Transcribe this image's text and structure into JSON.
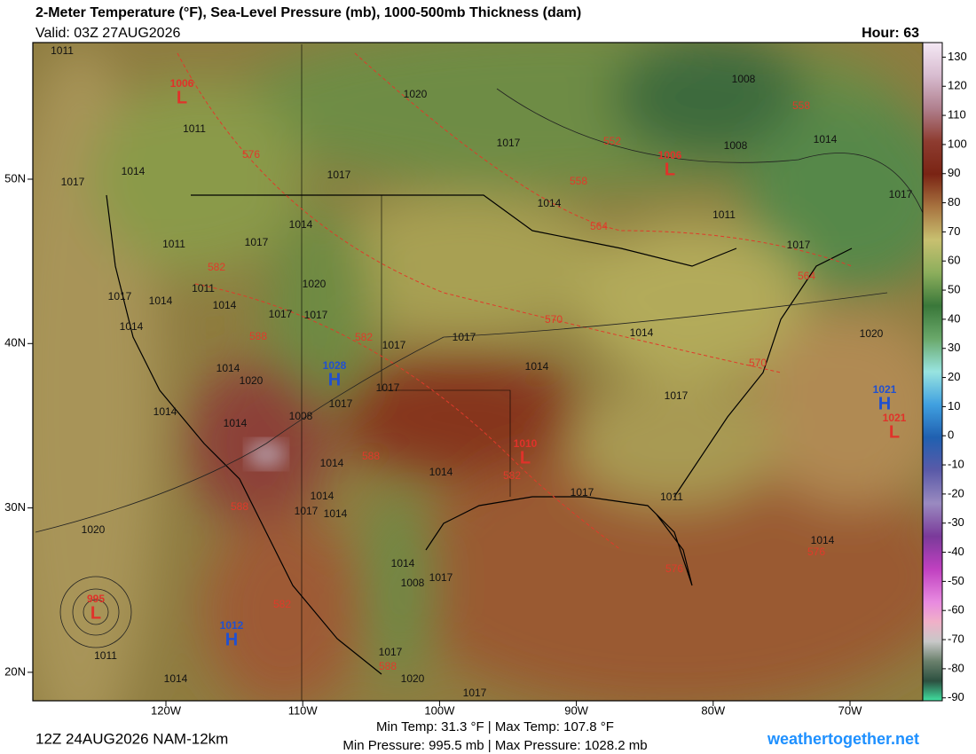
{
  "header": {
    "title": "2-Meter Temperature (°F), Sea-Level Pressure (mb), 1000-500mb Thickness (dam)",
    "valid": "Valid: 03Z 27AUG2026",
    "hour": "Hour: 63"
  },
  "map": {
    "lat_ticks": [
      {
        "value": 50,
        "label": "50N"
      },
      {
        "value": 40,
        "label": "40N"
      },
      {
        "value": 30,
        "label": "30N"
      },
      {
        "value": 20,
        "label": "20N"
      }
    ],
    "lon_ticks": [
      {
        "value": -120,
        "label": "120W"
      },
      {
        "value": -110,
        "label": "110W"
      },
      {
        "value": -100,
        "label": "100W"
      },
      {
        "value": -90,
        "label": "90W"
      },
      {
        "value": -80,
        "label": "80W"
      },
      {
        "value": -70,
        "label": "70W"
      }
    ],
    "pressure_centers": [
      {
        "kind": "L",
        "value": 1006
      },
      {
        "kind": "L",
        "value": 1006
      },
      {
        "kind": "H",
        "value": 1028
      },
      {
        "kind": "L",
        "value": 1010
      },
      {
        "kind": "H",
        "value": 1021
      },
      {
        "kind": "L",
        "value": 1021
      },
      {
        "kind": "H",
        "value": 1012
      },
      {
        "kind": "L",
        "value": 995
      }
    ],
    "isobar_labels": [
      1011,
      1020,
      1008,
      1011,
      1017,
      1017,
      1008,
      1014,
      1014,
      1017,
      1017,
      1014,
      1011,
      1014,
      1011,
      1017,
      1017,
      1020,
      1011,
      1017,
      1014,
      1014,
      1017,
      1017,
      1014,
      1017,
      1014,
      1020,
      1017,
      1014,
      1014,
      1020,
      1017,
      1017,
      1017,
      1014,
      1008,
      1014,
      1014,
      1014,
      1014,
      1017,
      1011,
      1017,
      1014,
      1020,
      1014,
      1014,
      1017,
      1008,
      1011,
      1014,
      1017,
      1020,
      1017
    ],
    "thickness_labels": [
      576,
      558,
      552,
      558,
      564,
      582,
      564,
      570,
      588,
      582,
      570,
      588,
      582,
      588,
      576,
      576,
      582,
      588
    ]
  },
  "colorbar": {
    "lim": [
      -91,
      135
    ],
    "ticks": [
      130,
      120,
      110,
      100,
      90,
      80,
      70,
      60,
      50,
      40,
      30,
      20,
      10,
      0,
      -10,
      -20,
      -30,
      -40,
      -50,
      -60,
      -70,
      -80,
      -90
    ]
  },
  "footer": {
    "run": "12Z 24AUG2026 NAM-12km",
    "temp": "Min Temp:  31.3 °F | Max Temp: 107.8 °F",
    "pressure": "Min Pressure: 995.5 mb | Max Pressure: 1028.2 mb",
    "site": "weathertogether.net"
  }
}
